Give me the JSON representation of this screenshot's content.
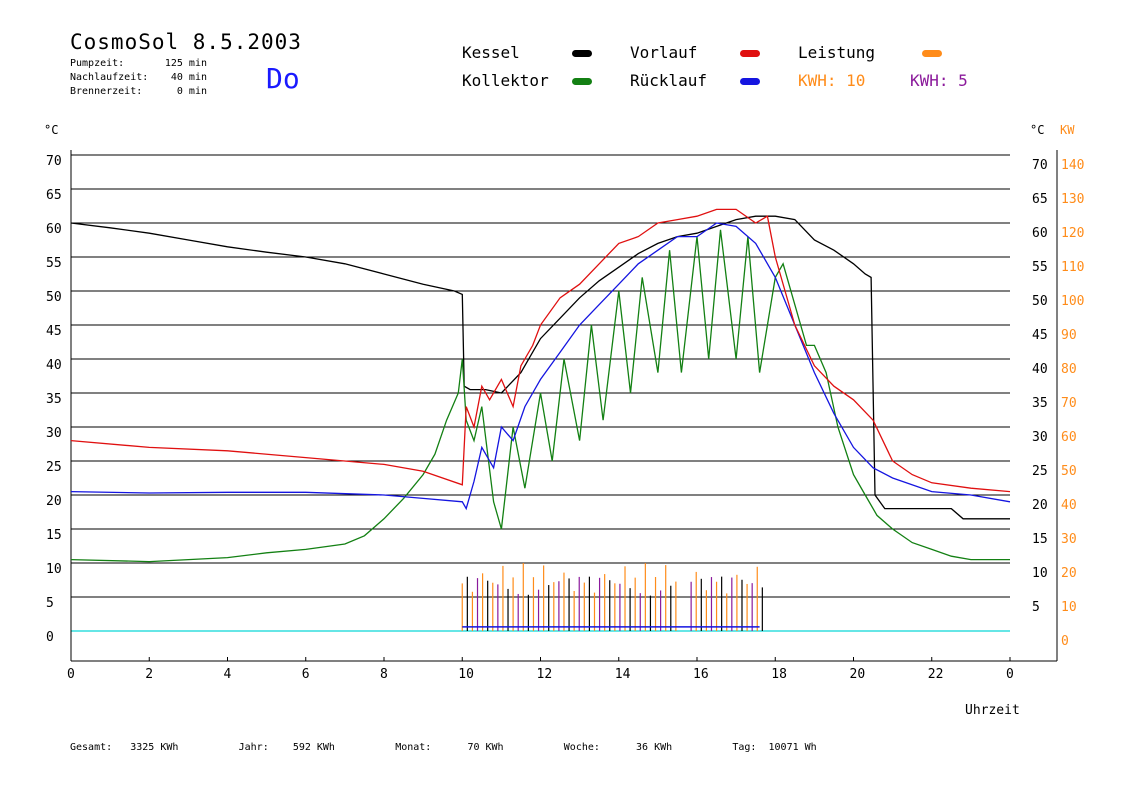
{
  "header": {
    "title": "CosmoSol 8.5.2003",
    "day": "Do",
    "info": [
      {
        "label": "Pumpzeit:",
        "value": "125 min"
      },
      {
        "label": "Nachlaufzeit:",
        "value": "40 min"
      },
      {
        "label": "Brennerzeit:",
        "value": "0 min"
      }
    ]
  },
  "legend": {
    "kessel": {
      "label": "Kessel",
      "color": "#000000"
    },
    "vorlauf": {
      "label": "Vorlauf",
      "color": "#e01010"
    },
    "leistung": {
      "label": "Leistung",
      "color": "#ff8c1a"
    },
    "kollektor": {
      "label": "Kollektor",
      "color": "#138013"
    },
    "ruecklauf": {
      "label": "Rücklauf",
      "color": "#1515e0"
    },
    "kwh1": {
      "label": "KWH: 10",
      "color": "#ff8c1a"
    },
    "kwh2": {
      "label": "KWH: 5",
      "color": "#8b1a9b"
    }
  },
  "stats": [
    {
      "label": "Gesamt:",
      "value": "3325 KWh"
    },
    {
      "label": "Jahr:",
      "value": "592 KWh"
    },
    {
      "label": "Monat:",
      "value": "70 KWh"
    },
    {
      "label": "Woche:",
      "value": "36 KWh"
    },
    {
      "label": "Tag:",
      "value": "10071 Wh"
    }
  ],
  "chart_data": {
    "type": "line",
    "xlabel": "Uhrzeit",
    "x_ticks": [
      "0",
      "2",
      "4",
      "6",
      "8",
      "10",
      "12",
      "14",
      "16",
      "18",
      "20",
      "22",
      "0"
    ],
    "xlim": [
      0,
      24
    ],
    "y_left": {
      "unit": "°C",
      "ticks": [
        0,
        5,
        10,
        15,
        20,
        25,
        30,
        35,
        40,
        45,
        50,
        55,
        60,
        65,
        70
      ],
      "ylim": [
        0,
        70
      ]
    },
    "y_right_temp": {
      "unit": "°C",
      "ticks": [
        5,
        10,
        15,
        20,
        25,
        30,
        35,
        40,
        45,
        50,
        55,
        60,
        65,
        70
      ]
    },
    "y_right_power": {
      "unit": "KW",
      "ticks": [
        0,
        10,
        20,
        30,
        40,
        50,
        60,
        70,
        80,
        90,
        100,
        110,
        120,
        130,
        140
      ],
      "ylim": [
        0,
        140
      ]
    },
    "grid": true,
    "series": [
      {
        "name": "Kessel",
        "color": "#000000",
        "points": [
          [
            0,
            60
          ],
          [
            1,
            59.3
          ],
          [
            2,
            58.5
          ],
          [
            3,
            57.5
          ],
          [
            4,
            56.5
          ],
          [
            5,
            55.7
          ],
          [
            6,
            55
          ],
          [
            7,
            54
          ],
          [
            8,
            52.5
          ],
          [
            9,
            51
          ],
          [
            9.8,
            50
          ],
          [
            10.0,
            49.5
          ],
          [
            10.05,
            36
          ],
          [
            10.2,
            35.5
          ],
          [
            10.6,
            35.5
          ],
          [
            11,
            35
          ],
          [
            11.5,
            38
          ],
          [
            12,
            43
          ],
          [
            12.5,
            46
          ],
          [
            13,
            49
          ],
          [
            13.5,
            51.5
          ],
          [
            14,
            53.5
          ],
          [
            14.5,
            55.5
          ],
          [
            15,
            57
          ],
          [
            15.5,
            58
          ],
          [
            16,
            58.5
          ],
          [
            16.5,
            59.5
          ],
          [
            17,
            60.5
          ],
          [
            17.5,
            61
          ],
          [
            18,
            61
          ],
          [
            18.5,
            60.5
          ],
          [
            19,
            57.5
          ],
          [
            19.5,
            56
          ],
          [
            20,
            54
          ],
          [
            20.3,
            52.5
          ],
          [
            20.45,
            52
          ],
          [
            20.55,
            20
          ],
          [
            20.8,
            18
          ],
          [
            21.5,
            18
          ],
          [
            22.5,
            18
          ],
          [
            22.8,
            16.5
          ],
          [
            24,
            16.5
          ]
        ]
      },
      {
        "name": "Vorlauf",
        "color": "#e01010",
        "points": [
          [
            0,
            28
          ],
          [
            2,
            27
          ],
          [
            4,
            26.5
          ],
          [
            6,
            25.5
          ],
          [
            8,
            24.5
          ],
          [
            9,
            23.5
          ],
          [
            10,
            21.5
          ],
          [
            10.1,
            33
          ],
          [
            10.3,
            30
          ],
          [
            10.5,
            36
          ],
          [
            10.7,
            34
          ],
          [
            11,
            37
          ],
          [
            11.3,
            33
          ],
          [
            11.5,
            39
          ],
          [
            11.8,
            42
          ],
          [
            12,
            45
          ],
          [
            12.5,
            49
          ],
          [
            13,
            51
          ],
          [
            13.5,
            54
          ],
          [
            14,
            57
          ],
          [
            14.5,
            58
          ],
          [
            15,
            60
          ],
          [
            15.5,
            60.5
          ],
          [
            16,
            61
          ],
          [
            16.5,
            62
          ],
          [
            17,
            62
          ],
          [
            17.5,
            60
          ],
          [
            17.8,
            61
          ],
          [
            18,
            55
          ],
          [
            18.5,
            45
          ],
          [
            19,
            39
          ],
          [
            19.5,
            36
          ],
          [
            20,
            34
          ],
          [
            20.5,
            31
          ],
          [
            21,
            25
          ],
          [
            21.5,
            23
          ],
          [
            22,
            21.8
          ],
          [
            23,
            21
          ],
          [
            24,
            20.5
          ]
        ]
      },
      {
        "name": "Rücklauf",
        "color": "#1515e0",
        "points": [
          [
            0,
            20.5
          ],
          [
            2,
            20.3
          ],
          [
            4,
            20.4
          ],
          [
            6,
            20.4
          ],
          [
            8,
            20
          ],
          [
            9,
            19.5
          ],
          [
            10,
            19
          ],
          [
            10.1,
            18
          ],
          [
            10.3,
            22
          ],
          [
            10.5,
            27
          ],
          [
            10.8,
            24
          ],
          [
            11,
            30
          ],
          [
            11.3,
            28
          ],
          [
            11.6,
            33
          ],
          [
            12,
            37
          ],
          [
            12.5,
            41
          ],
          [
            13,
            45
          ],
          [
            13.5,
            48
          ],
          [
            14,
            51
          ],
          [
            14.5,
            54
          ],
          [
            15,
            56
          ],
          [
            15.5,
            58
          ],
          [
            16,
            58
          ],
          [
            16.5,
            60
          ],
          [
            17,
            59.5
          ],
          [
            17.5,
            57
          ],
          [
            18,
            52
          ],
          [
            18.5,
            45
          ],
          [
            19,
            38
          ],
          [
            19.5,
            32
          ],
          [
            20,
            27
          ],
          [
            20.5,
            24
          ],
          [
            21,
            22.5
          ],
          [
            22,
            20.5
          ],
          [
            23,
            20
          ],
          [
            24,
            19
          ]
        ]
      },
      {
        "name": "Kollektor",
        "color": "#138013",
        "points": [
          [
            0,
            10.5
          ],
          [
            2,
            10.2
          ],
          [
            4,
            10.8
          ],
          [
            5,
            11.5
          ],
          [
            6,
            12
          ],
          [
            7,
            12.8
          ],
          [
            7.5,
            14
          ],
          [
            8,
            16.5
          ],
          [
            8.5,
            19.5
          ],
          [
            9,
            23
          ],
          [
            9.3,
            26
          ],
          [
            9.6,
            31
          ],
          [
            9.9,
            35
          ],
          [
            10.0,
            40
          ],
          [
            10.1,
            31
          ],
          [
            10.3,
            28
          ],
          [
            10.5,
            33
          ],
          [
            10.8,
            19
          ],
          [
            11,
            15
          ],
          [
            11.3,
            30
          ],
          [
            11.6,
            21
          ],
          [
            12,
            35
          ],
          [
            12.3,
            25
          ],
          [
            12.6,
            40
          ],
          [
            13,
            28
          ],
          [
            13.3,
            45
          ],
          [
            13.6,
            31
          ],
          [
            14,
            50
          ],
          [
            14.3,
            35
          ],
          [
            14.6,
            52
          ],
          [
            15,
            38
          ],
          [
            15.3,
            56
          ],
          [
            15.6,
            38
          ],
          [
            16,
            58
          ],
          [
            16.3,
            40
          ],
          [
            16.6,
            59
          ],
          [
            17,
            40
          ],
          [
            17.3,
            58
          ],
          [
            17.6,
            38
          ],
          [
            18,
            52
          ],
          [
            18.2,
            54
          ],
          [
            18.5,
            48
          ],
          [
            18.8,
            42
          ],
          [
            19,
            42
          ],
          [
            19.3,
            38
          ],
          [
            19.6,
            30
          ],
          [
            20,
            23
          ],
          [
            20.3,
            20
          ],
          [
            20.6,
            17
          ],
          [
            21,
            15
          ],
          [
            21.5,
            13
          ],
          [
            22,
            12
          ],
          [
            22.5,
            11
          ],
          [
            23,
            10.5
          ],
          [
            24,
            10.5
          ]
        ]
      }
    ]
  }
}
